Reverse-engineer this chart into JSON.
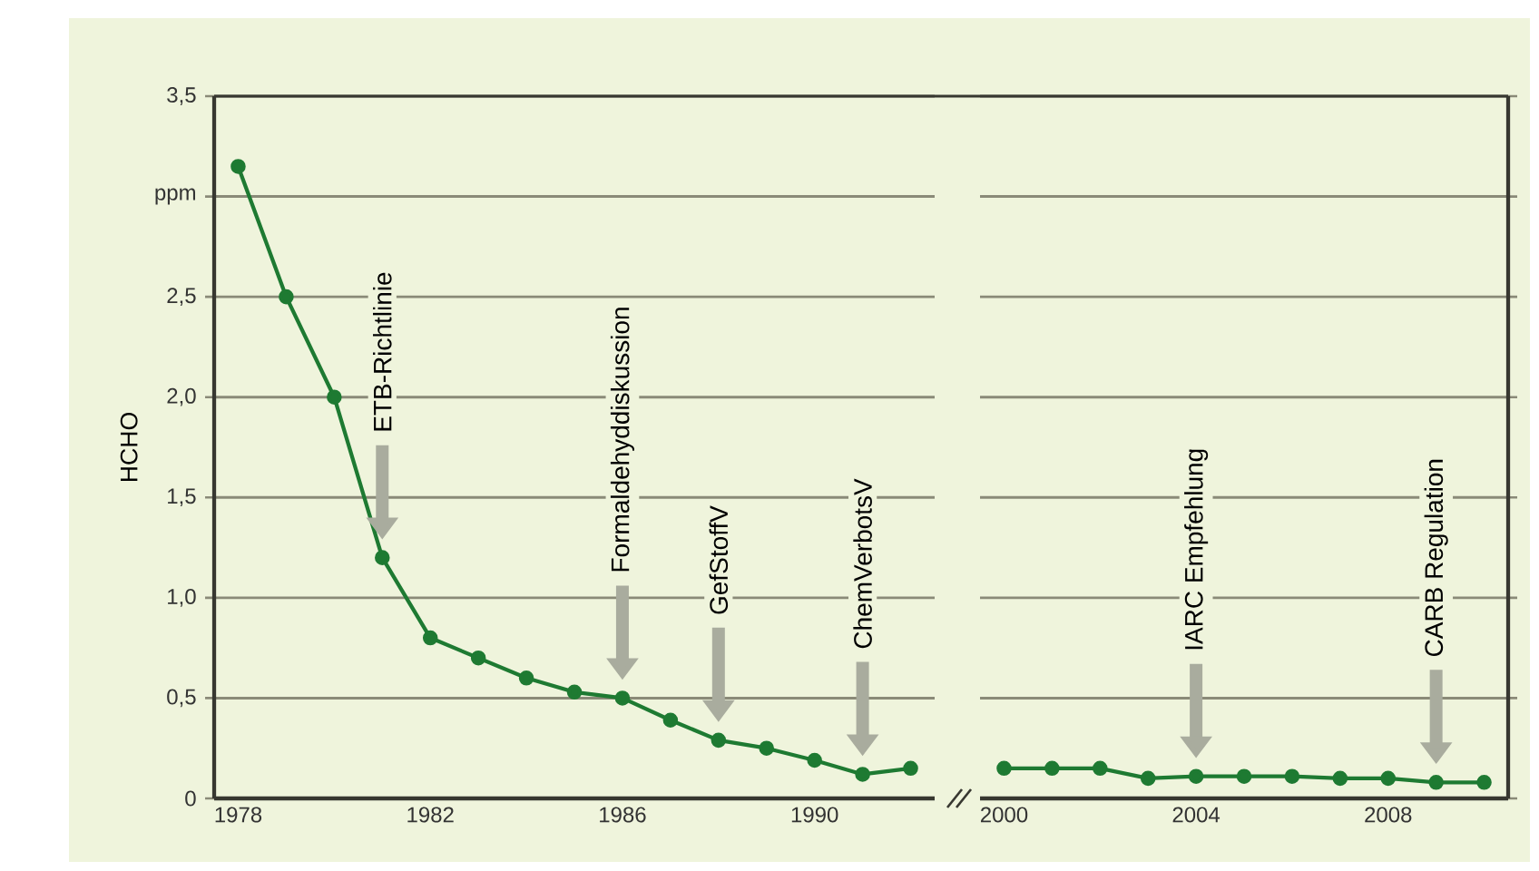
{
  "chart_data": [
    {
      "type": "line",
      "ylabel": "HCHO",
      "x": [
        1978,
        1979,
        1980,
        1981,
        1982,
        1983,
        1984,
        1985,
        1986,
        1987,
        1988,
        1989,
        1990,
        1991,
        1992
      ],
      "series": [
        {
          "color": "#1e7a32",
          "values": [
            3.15,
            2.5,
            2.0,
            1.2,
            0.8,
            0.7,
            0.6,
            0.53,
            0.5,
            0.39,
            0.29,
            0.25,
            0.19,
            0.12,
            0.15
          ]
        }
      ],
      "xlim": [
        1977.5,
        1992.5
      ],
      "xticks": [
        1978,
        1982,
        1986,
        1990
      ],
      "ylim": [
        0,
        3.5
      ],
      "yticks": [
        {
          "value": 0,
          "label": "0"
        },
        {
          "value": 0.5,
          "label": "0,5"
        },
        {
          "value": 1,
          "label": "1,0"
        },
        {
          "value": 1.5,
          "label": "1,5"
        },
        {
          "value": 2,
          "label": "2,0"
        },
        {
          "value": 2.5,
          "label": "2,5"
        },
        {
          "value": 3,
          "label": "ppm"
        },
        {
          "value": 3.5,
          "label": "3,5"
        }
      ],
      "grid": "y",
      "marker": "circle",
      "line_style": "solid",
      "annotations": [
        {
          "text": "ETB-Richtlinie",
          "x": 1981
        },
        {
          "text": "Formaldehyddiskussion",
          "x": 1986
        },
        {
          "text": "GefStoffV",
          "x": 1988
        },
        {
          "text": "ChemVerbotsV",
          "x": 1991
        }
      ]
    },
    {
      "type": "line",
      "x": [
        2000,
        2001,
        2002,
        2003,
        2004,
        2005,
        2006,
        2007,
        2008,
        2009,
        2010
      ],
      "series": [
        {
          "color": "#1e7a32",
          "values": [
            0.15,
            0.15,
            0.15,
            0.1,
            0.11,
            0.11,
            0.11,
            0.1,
            0.1,
            0.08,
            0.08
          ]
        }
      ],
      "xlim": [
        1999.5,
        2010.5
      ],
      "xticks": [
        2000,
        2004,
        2008
      ],
      "ylim": [
        0,
        3.5
      ],
      "yticks": [
        0,
        0.5,
        1,
        1.5,
        2,
        2.5,
        3,
        3.5
      ],
      "tick_labels": "x",
      "grid": "y",
      "marker": "circle",
      "line_style": "solid",
      "annotations": [
        {
          "text": "IARC Empfehlung",
          "x": 2004
        },
        {
          "text": "CARB Regulation",
          "x": 2009
        }
      ]
    }
  ]
}
